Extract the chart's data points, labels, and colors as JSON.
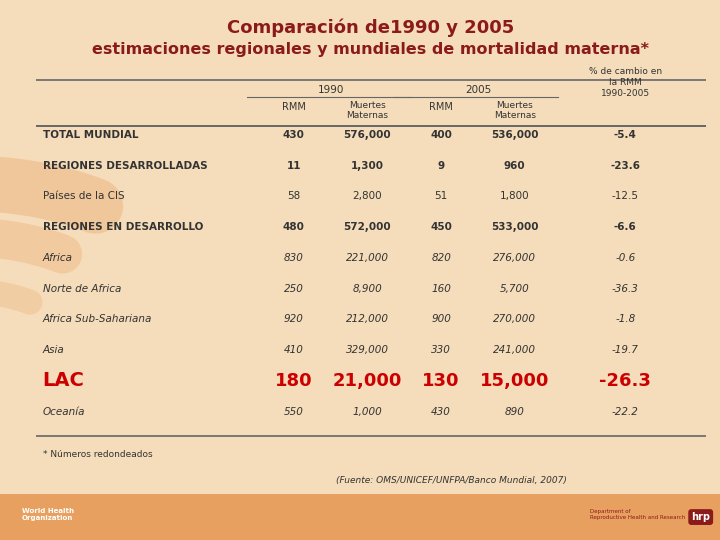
{
  "title_line1": "Comparación de1990 y 2005",
  "title_line2": "estimaciones regionales y mundiales de mortalidad materna*",
  "title_color": "#8B1A1A",
  "bg_color": "#F5DDBB",
  "header1": "1990",
  "header2": "2005",
  "header3": "% de cambio en\nla RMM\n1990-2005",
  "rows": [
    {
      "label": "TOTAL MUNDIAL",
      "vals": [
        "430",
        "576,000",
        "400",
        "536,000",
        "-5.4"
      ],
      "bold": true,
      "italic": false,
      "red": false,
      "indent": false
    },
    {
      "label": "REGIONES DESARROLLADAS",
      "vals": [
        "11",
        "1,300",
        "9",
        "960",
        "-23.6"
      ],
      "bold": true,
      "italic": false,
      "red": false,
      "indent": false
    },
    {
      "label": "Países de la CIS",
      "vals": [
        "58",
        "2,800",
        "51",
        "1,800",
        "-12.5"
      ],
      "bold": false,
      "italic": false,
      "red": false,
      "indent": false
    },
    {
      "label": "REGIONES EN DESARROLLO",
      "vals": [
        "480",
        "572,000",
        "450",
        "533,000",
        "-6.6"
      ],
      "bold": true,
      "italic": false,
      "red": false,
      "indent": false
    },
    {
      "label": "Africa",
      "vals": [
        "830",
        "221,000",
        "820",
        "276,000",
        "-0.6"
      ],
      "bold": false,
      "italic": true,
      "red": false,
      "indent": true
    },
    {
      "label": "Norte de Africa",
      "vals": [
        "250",
        "8,900",
        "160",
        "5,700",
        "-36.3"
      ],
      "bold": false,
      "italic": true,
      "red": false,
      "indent": true
    },
    {
      "label": "Africa Sub-Sahariana",
      "vals": [
        "920",
        "212,000",
        "900",
        "270,000",
        "-1.8"
      ],
      "bold": false,
      "italic": true,
      "red": false,
      "indent": true
    },
    {
      "label": "Asia",
      "vals": [
        "410",
        "329,000",
        "330",
        "241,000",
        "-19.7"
      ],
      "bold": false,
      "italic": true,
      "red": false,
      "indent": true
    },
    {
      "label": "LAC",
      "vals": [
        "180",
        "21,000",
        "130",
        "15,000",
        "-26.3"
      ],
      "bold": true,
      "italic": false,
      "red": true,
      "indent": false
    },
    {
      "label": "Oceanía",
      "vals": [
        "550",
        "1,000",
        "430",
        "890",
        "-22.2"
      ],
      "bold": false,
      "italic": true,
      "red": false,
      "indent": false
    }
  ],
  "footnote": "* Números redondeados",
  "source": "(Fuente: OMS/UNICEF/UNFPA/Banco Mundial, 2007)",
  "footer_color": "#E8A060",
  "arc_color": "#E8A060"
}
